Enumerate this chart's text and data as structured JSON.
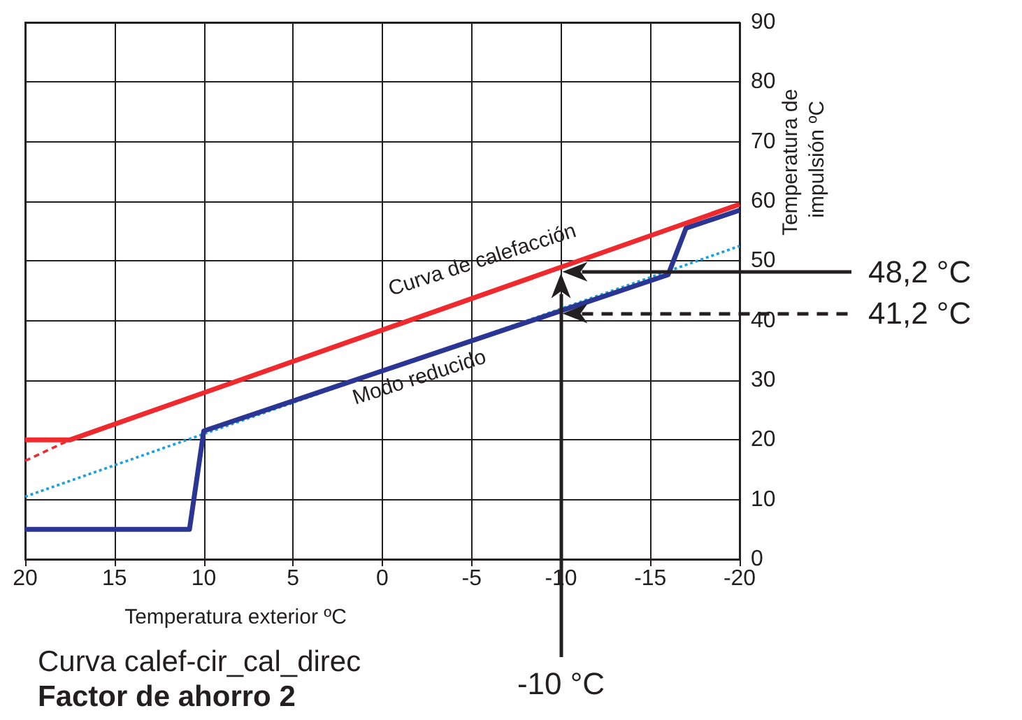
{
  "chart_data": {
    "type": "line",
    "title": "Curva calef-cir_cal_direc",
    "subtitle": "Factor de ahorro 2",
    "xlabel": "Temperatura exterior ºC",
    "ylabel": "Temperatura de impulsión ºC",
    "xlim": [
      20,
      -20
    ],
    "xticks": [
      20,
      15,
      10,
      5,
      0,
      -5,
      -10,
      -15,
      -20
    ],
    "ylim": [
      0,
      90
    ],
    "yticks": [
      0,
      10,
      20,
      30,
      40,
      50,
      60,
      70,
      80,
      90
    ],
    "grid": true,
    "marker": "none",
    "series": [
      {
        "color": "#ee2a2e",
        "x": [
          20,
          17.5
        ],
        "values": [
          16.5,
          20
        ],
        "line_style": "dashed"
      },
      {
        "color": "#19a0e0",
        "x": [
          20,
          -20
        ],
        "values": [
          10.5,
          52.5
        ],
        "line_style": "dotted"
      },
      {
        "color": "#2b3593",
        "x": [
          20,
          10.8,
          10,
          -16,
          -17,
          -20
        ],
        "values": [
          5,
          5,
          21.5,
          47.7,
          55.5,
          58.5
        ],
        "line_style": "solid"
      },
      {
        "color": "#ee2a2e",
        "x": [
          20,
          17.5,
          -20
        ],
        "values": [
          20,
          20,
          59.5
        ],
        "line_style": "solid"
      }
    ],
    "ref_lines": [
      {
        "axis": "x",
        "value": -10,
        "label": "-10 °C"
      },
      {
        "axis": "y",
        "value": 48.2,
        "label": "48,2 °C"
      },
      {
        "axis": "y",
        "value": 41.2,
        "label": "41,2 °C",
        "line_style": "dashed"
      }
    ],
    "annotations": [
      "Curva de calefacción",
      "Modo reducido"
    ]
  }
}
